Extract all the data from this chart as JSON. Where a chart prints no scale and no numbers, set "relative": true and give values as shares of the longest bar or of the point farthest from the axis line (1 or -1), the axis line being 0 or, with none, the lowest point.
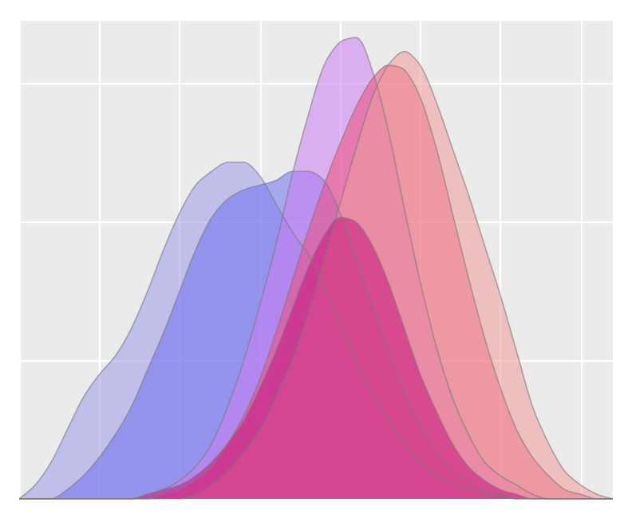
{
  "chart_data": {
    "type": "area",
    "relative": true,
    "grid": true,
    "tick_labels": false,
    "categories": [
      null,
      null,
      null,
      null,
      null,
      null,
      null,
      null,
      null,
      null,
      null,
      null,
      null,
      null,
      null,
      null,
      null,
      null,
      null,
      null,
      null,
      null,
      null,
      null,
      null,
      null,
      null,
      null,
      null,
      null,
      null,
      null,
      null,
      null,
      null,
      null,
      null,
      null
    ],
    "series": [
      {
        "color": "#9a9ae8",
        "values": [
          0,
          0.03,
          0.08,
          0.15,
          0.22,
          0.27,
          0.31,
          0.37,
          0.45,
          0.54,
          0.62,
          0.68,
          0.71,
          0.73,
          0.73,
          0.7,
          0.64,
          0.58,
          0.53,
          0.46,
          0.38,
          0.3,
          0.23,
          0.17,
          0.12,
          0.08,
          0.05,
          0.03,
          0.02,
          0.01,
          0.005,
          0,
          0,
          0,
          0,
          0,
          0,
          0
        ]
      },
      {
        "color": "#6f6ff2",
        "values": [
          0,
          0,
          0,
          0.02,
          0.05,
          0.09,
          0.14,
          0.2,
          0.28,
          0.36,
          0.45,
          0.54,
          0.61,
          0.65,
          0.67,
          0.68,
          0.69,
          0.71,
          0.71,
          0.69,
          0.62,
          0.52,
          0.42,
          0.32,
          0.23,
          0.16,
          0.1,
          0.06,
          0.04,
          0.02,
          0.01,
          0,
          0,
          0,
          0,
          0,
          0,
          0
        ]
      },
      {
        "color": "#cc7ef2",
        "values": [
          0,
          0,
          0,
          0,
          0,
          0,
          0,
          0,
          0.01,
          0.02,
          0.04,
          0.07,
          0.12,
          0.2,
          0.3,
          0.42,
          0.55,
          0.7,
          0.83,
          0.94,
          0.99,
          1,
          0.93,
          0.8,
          0.63,
          0.47,
          0.33,
          0.22,
          0.14,
          0.08,
          0.05,
          0.03,
          0.01,
          0,
          0,
          0,
          0,
          0
        ]
      },
      {
        "color": "#ee4f7c",
        "values": [
          0,
          0,
          0,
          0,
          0,
          0,
          0,
          0,
          0,
          0.01,
          0.02,
          0.04,
          0.07,
          0.12,
          0.18,
          0.26,
          0.36,
          0.47,
          0.58,
          0.68,
          0.77,
          0.85,
          0.91,
          0.94,
          0.93,
          0.87,
          0.76,
          0.62,
          0.48,
          0.35,
          0.24,
          0.15,
          0.09,
          0.05,
          0.02,
          0.01,
          0,
          0
        ]
      },
      {
        "color": "#ee9a9a",
        "values": [
          0,
          0,
          0,
          0,
          0,
          0,
          0,
          0,
          0,
          0,
          0,
          0.01,
          0.03,
          0.06,
          0.1,
          0.15,
          0.22,
          0.3,
          0.4,
          0.52,
          0.64,
          0.76,
          0.87,
          0.94,
          0.97,
          0.94,
          0.86,
          0.76,
          0.66,
          0.55,
          0.44,
          0.32,
          0.2,
          0.12,
          0.06,
          0.03,
          0.01,
          0
        ]
      },
      {
        "color": "#c8147e",
        "values": [
          0,
          0,
          0,
          0,
          0,
          0,
          0,
          0,
          0.01,
          0.02,
          0.03,
          0.05,
          0.08,
          0.12,
          0.17,
          0.24,
          0.32,
          0.41,
          0.5,
          0.57,
          0.61,
          0.6,
          0.55,
          0.47,
          0.37,
          0.27,
          0.19,
          0.12,
          0.07,
          0.04,
          0.02,
          0.01,
          0,
          0,
          0,
          0,
          0,
          0
        ]
      }
    ]
  }
}
